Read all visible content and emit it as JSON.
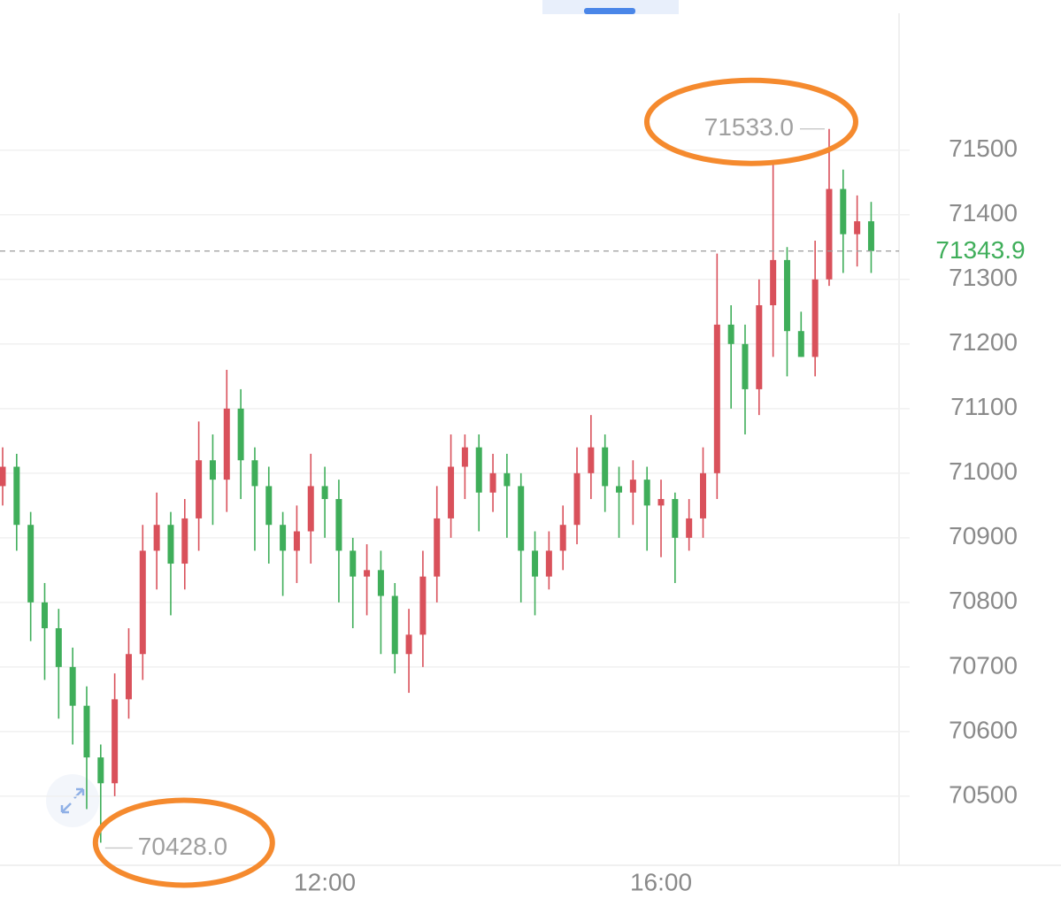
{
  "chart_data": {
    "type": "candlestick",
    "x": [
      "08:10",
      "08:20",
      "08:30",
      "08:40",
      "08:50",
      "09:00",
      "09:10",
      "09:20",
      "09:30",
      "09:40",
      "09:50",
      "10:00",
      "10:10",
      "10:20",
      "10:30",
      "10:40",
      "10:50",
      "11:00",
      "11:10",
      "11:20",
      "11:30",
      "11:40",
      "11:50",
      "12:00",
      "12:10",
      "12:20",
      "12:30",
      "12:40",
      "12:50",
      "13:00",
      "13:10",
      "13:20",
      "13:30",
      "13:40",
      "13:50",
      "14:00",
      "14:10",
      "14:20",
      "14:30",
      "14:40",
      "14:50",
      "15:00",
      "15:10",
      "15:20",
      "15:30",
      "15:40",
      "15:50",
      "16:00",
      "16:10",
      "16:20",
      "16:30",
      "16:40",
      "16:50",
      "17:00",
      "17:10",
      "17:20",
      "17:30",
      "17:40",
      "17:50",
      "18:00",
      "18:10",
      "18:20",
      "18:30"
    ],
    "open": [
      70980,
      71010,
      70920,
      70800,
      70760,
      70700,
      70640,
      70560,
      70520,
      70650,
      70720,
      70880,
      70920,
      70860,
      70930,
      71020,
      70990,
      71100,
      71020,
      70980,
      70920,
      70880,
      70910,
      70980,
      70960,
      70880,
      70840,
      70850,
      70810,
      70720,
      70750,
      70840,
      70930,
      71010,
      71040,
      70970,
      71000,
      70980,
      70880,
      70840,
      70880,
      70920,
      71000,
      71040,
      70980,
      70970,
      70990,
      70950,
      70960,
      70900,
      70930,
      71000,
      71230,
      71200,
      71130,
      71260,
      71330,
      71220,
      71180,
      71300,
      71440,
      71370,
      71390
    ],
    "high": [
      71040,
      71030,
      70940,
      70830,
      70790,
      70730,
      70670,
      70580,
      70690,
      70760,
      70920,
      70970,
      70940,
      70960,
      71080,
      71060,
      71160,
      71130,
      71040,
      71010,
      70940,
      70950,
      71030,
      71010,
      70990,
      70900,
      70890,
      70880,
      70830,
      70790,
      70880,
      70980,
      71060,
      71060,
      71060,
      71030,
      71030,
      71000,
      70910,
      70910,
      70950,
      71040,
      71090,
      71060,
      71010,
      71020,
      71010,
      70990,
      70970,
      70960,
      71040,
      71340,
      71260,
      71230,
      71300,
      71480,
      71350,
      71250,
      71360,
      71533,
      71470,
      71430,
      71420
    ],
    "low": [
      70950,
      70880,
      70740,
      70680,
      70620,
      70580,
      70480,
      70428,
      70500,
      70620,
      70680,
      70820,
      70780,
      70820,
      70880,
      70920,
      70940,
      70960,
      70880,
      70860,
      70810,
      70830,
      70860,
      70900,
      70800,
      70760,
      70780,
      70720,
      70690,
      70660,
      70700,
      70800,
      70900,
      70960,
      70910,
      70940,
      70900,
      70800,
      70780,
      70820,
      70850,
      70890,
      70960,
      70940,
      70900,
      70920,
      70880,
      70870,
      70830,
      70880,
      70900,
      70960,
      71100,
      71060,
      71090,
      71180,
      71150,
      71180,
      71150,
      71290,
      71310,
      71320,
      71310
    ],
    "close": [
      71010,
      70920,
      70800,
      70760,
      70700,
      70640,
      70560,
      70520,
      70650,
      70720,
      70880,
      70920,
      70860,
      70930,
      71020,
      70990,
      71100,
      71020,
      70980,
      70920,
      70880,
      70910,
      70980,
      70960,
      70880,
      70840,
      70850,
      70810,
      70720,
      70750,
      70840,
      70930,
      71010,
      71040,
      70970,
      71000,
      70980,
      70880,
      70840,
      70880,
      70920,
      71000,
      71040,
      70980,
      70970,
      70990,
      70950,
      70960,
      70900,
      70930,
      71000,
      71230,
      71200,
      71130,
      71260,
      71330,
      71220,
      71180,
      71300,
      71440,
      71370,
      71390,
      71343.9
    ],
    "up_color": "#d9515b",
    "down_color": "#3fae5a",
    "ylim": [
      70393,
      71712
    ],
    "yticks": [
      70500,
      70600,
      70700,
      70800,
      70900,
      71000,
      71100,
      71200,
      71300,
      71400,
      71500
    ],
    "xticks": [
      "12:00",
      "16:00"
    ],
    "grid": true,
    "last_price": 71343.9,
    "annotations": [
      {
        "x": "18:00",
        "value": 71533,
        "label": "71533.0"
      },
      {
        "x": "09:20",
        "value": 70428,
        "label": "70428.0"
      }
    ]
  }
}
